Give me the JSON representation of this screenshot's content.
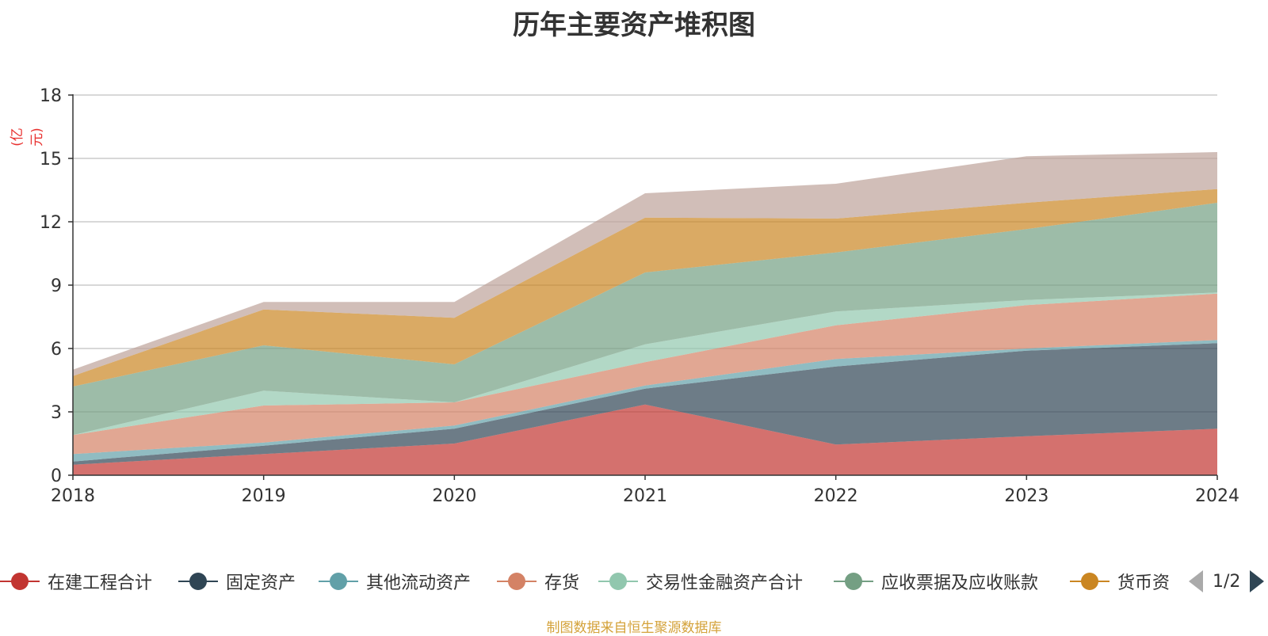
{
  "title": "历年主要资产堆积图",
  "unit": "(亿元)",
  "source": "制图数据来自恒生聚源数据库",
  "legend": {
    "page_indicator": "1/2",
    "items": [
      {
        "label": "在建工程合计",
        "color": "#c23531"
      },
      {
        "label": "固定资产",
        "color": "#2f4554"
      },
      {
        "label": "其他流动资产",
        "color": "#61a0a8"
      },
      {
        "label": "存货",
        "color": "#d48265"
      },
      {
        "label": "交易性金融资产合计",
        "color": "#91c7ae"
      },
      {
        "label": "应收票据及应收账款",
        "color": "#749f83"
      },
      {
        "label": "货币资",
        "color": "#ca8622"
      }
    ]
  },
  "chart_data": {
    "type": "area",
    "stacked": true,
    "x": [
      "2018",
      "2019",
      "2020",
      "2021",
      "2022",
      "2023",
      "2024"
    ],
    "ylim": [
      0,
      18
    ],
    "yticks": [
      0,
      3,
      6,
      9,
      12,
      15,
      18
    ],
    "grid": true,
    "legend_position": "bottom",
    "series": [
      {
        "name": "在建工程合计",
        "color": "#c23531",
        "values": [
          0.5,
          1.0,
          1.5,
          3.35,
          1.45,
          1.85,
          2.2
        ]
      },
      {
        "name": "固定资产",
        "color": "#2f4554",
        "values": [
          0.15,
          0.4,
          0.7,
          0.75,
          3.7,
          4.05,
          4.05
        ]
      },
      {
        "name": "其他流动资产",
        "color": "#61a0a8",
        "values": [
          0.35,
          0.15,
          0.15,
          0.15,
          0.35,
          0.1,
          0.15
        ]
      },
      {
        "name": "存货",
        "color": "#d48265",
        "values": [
          0.9,
          1.75,
          1.1,
          1.1,
          1.6,
          2.05,
          2.2
        ]
      },
      {
        "name": "交易性金融资产合计",
        "color": "#91c7ae",
        "values": [
          0.0,
          0.7,
          0.0,
          0.85,
          0.65,
          0.25,
          0.05
        ]
      },
      {
        "name": "应收票据及应收账款",
        "color": "#749f83",
        "values": [
          2.3,
          2.15,
          1.8,
          3.4,
          2.8,
          3.35,
          4.25
        ]
      },
      {
        "name": "",
        "color": "#ca8622",
        "values": [
          0.5,
          1.7,
          2.2,
          2.6,
          1.6,
          1.25,
          0.65
        ]
      },
      {
        "name": "",
        "color": "#bda29a",
        "values": [
          0.3,
          0.35,
          0.75,
          1.15,
          1.65,
          2.2,
          1.75
        ]
      }
    ]
  }
}
